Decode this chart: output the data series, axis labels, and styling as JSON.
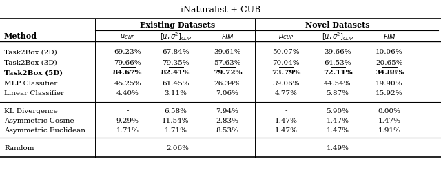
{
  "title": "iNaturalist + CUB",
  "rows_group1": [
    {
      "method": "Task2Box (2D)",
      "vals": [
        "69.23%",
        "67.84%",
        "39.61%",
        "50.07%",
        "39.66%",
        "10.06%"
      ],
      "bold": false,
      "underline": false
    },
    {
      "method": "Task2Box (3D)",
      "vals": [
        "79.66%",
        "79.35%",
        "57.63%",
        "70.04%",
        "64.53%",
        "20.65%"
      ],
      "bold": false,
      "underline": true
    },
    {
      "method": "Task2Box (5D)",
      "vals": [
        "84.67%",
        "82.41%",
        "79.72%",
        "73.79%",
        "72.11%",
        "34.88%"
      ],
      "bold": true,
      "underline": false
    },
    {
      "method": "MLP Classifier",
      "vals": [
        "45.25%",
        "61.45%",
        "26.34%",
        "39.06%",
        "44.54%",
        "19.90%"
      ],
      "bold": false,
      "underline": false
    },
    {
      "method": "Linear Classifier",
      "vals": [
        "4.40%",
        "3.11%",
        "7.06%",
        "4.77%",
        "5.87%",
        "15.92%"
      ],
      "bold": false,
      "underline": false
    }
  ],
  "rows_group2": [
    {
      "method": "KL Divergence",
      "vals": [
        "-",
        "6.58%",
        "7.94%",
        "-",
        "5.90%",
        "0.00%"
      ]
    },
    {
      "method": "Asymmetric Cosine",
      "vals": [
        "9.29%",
        "11.54%",
        "2.83%",
        "1.47%",
        "1.47%",
        "1.47%"
      ]
    },
    {
      "method": "Asymmetric Euclidean",
      "vals": [
        "1.71%",
        "1.71%",
        "8.53%",
        "1.47%",
        "1.47%",
        "1.91%"
      ]
    }
  ],
  "random_existing": "2.06%",
  "random_novel": "1.49%"
}
